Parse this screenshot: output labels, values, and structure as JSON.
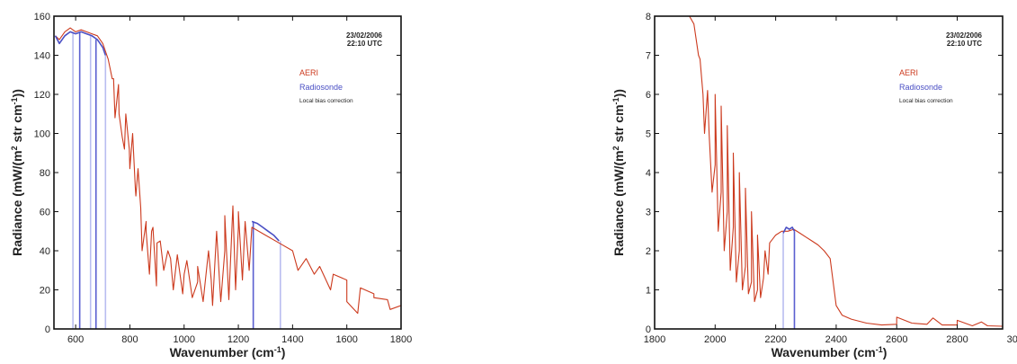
{
  "chart_data": [
    {
      "type": "line",
      "xlabel": "Wavenumber (cm",
      "xlabel_sup": "-1",
      "xlabel_end": ")",
      "ylabel": "Radiance (mW/(m",
      "ylabel_sup1": "2",
      "ylabel_mid": " str cm",
      "ylabel_sup2": "-1",
      "ylabel_end": "))",
      "xlim": [
        520,
        1800
      ],
      "ylim": [
        0,
        160
      ],
      "x_ticks": [
        600,
        800,
        1000,
        1200,
        1400,
        1600,
        1800
      ],
      "y_ticks": [
        0,
        20,
        40,
        60,
        80,
        100,
        120,
        140,
        160
      ],
      "annotation_date": "23/02/2006",
      "annotation_time": "22:10 UTC",
      "legend_position": "top-right",
      "series": [
        {
          "name": "AERI",
          "color": "#cc3a1e",
          "x": [
            525,
            540,
            560,
            580,
            600,
            620,
            640,
            660,
            680,
            700,
            720,
            740,
            760,
            780,
            800,
            820,
            840,
            860,
            880,
            900,
            950,
            1000,
            1050,
            1100,
            1150,
            1200,
            1250,
            1300,
            1350,
            1400,
            1450,
            1500,
            1550,
            1600,
            1650,
            1700,
            1750,
            1800
          ],
          "y": [
            150,
            148,
            152,
            154,
            152,
            153,
            152,
            151,
            150,
            146,
            138,
            128,
            110,
            92,
            82,
            72,
            62,
            55,
            50,
            44,
            36,
            28,
            24,
            25,
            40,
            52,
            52,
            48,
            44,
            40,
            36,
            32,
            28,
            25,
            21,
            18,
            15,
            12
          ],
          "spikes": [
            {
              "x": 735,
              "y": 128
            },
            {
              "x": 745,
              "y": 108
            },
            {
              "x": 758,
              "y": 125
            },
            {
              "x": 772,
              "y": 98
            },
            {
              "x": 785,
              "y": 110
            },
            {
              "x": 798,
              "y": 92
            },
            {
              "x": 810,
              "y": 100
            },
            {
              "x": 822,
              "y": 68
            },
            {
              "x": 830,
              "y": 82
            },
            {
              "x": 845,
              "y": 40
            },
            {
              "x": 860,
              "y": 50
            },
            {
              "x": 872,
              "y": 28
            },
            {
              "x": 885,
              "y": 52
            },
            {
              "x": 898,
              "y": 22
            },
            {
              "x": 912,
              "y": 45
            },
            {
              "x": 925,
              "y": 30
            },
            {
              "x": 940,
              "y": 40
            },
            {
              "x": 960,
              "y": 20
            },
            {
              "x": 975,
              "y": 38
            },
            {
              "x": 995,
              "y": 18
            },
            {
              "x": 1010,
              "y": 35
            },
            {
              "x": 1030,
              "y": 16
            },
            {
              "x": 1050,
              "y": 32
            },
            {
              "x": 1070,
              "y": 14
            },
            {
              "x": 1090,
              "y": 40
            },
            {
              "x": 1105,
              "y": 12
            },
            {
              "x": 1120,
              "y": 50
            },
            {
              "x": 1135,
              "y": 14
            },
            {
              "x": 1150,
              "y": 58
            },
            {
              "x": 1165,
              "y": 15
            },
            {
              "x": 1180,
              "y": 63
            },
            {
              "x": 1190,
              "y": 20
            },
            {
              "x": 1200,
              "y": 60
            },
            {
              "x": 1215,
              "y": 25
            },
            {
              "x": 1225,
              "y": 55
            },
            {
              "x": 1240,
              "y": 30
            },
            {
              "x": 1420,
              "y": 30
            },
            {
              "x": 1480,
              "y": 28
            },
            {
              "x": 1540,
              "y": 20
            },
            {
              "x": 1600,
              "y": 14
            },
            {
              "x": 1640,
              "y": 8
            },
            {
              "x": 1700,
              "y": 16
            },
            {
              "x": 1760,
              "y": 10
            }
          ]
        },
        {
          "name": "Radiosonde",
          "color": "#4a4fc4",
          "x": [
            525,
            540,
            560,
            580,
            600,
            620,
            640,
            660,
            680,
            700,
            710,
            1250,
            1270,
            1290,
            1310,
            1330,
            1350
          ],
          "y": [
            150,
            146,
            150,
            152,
            151,
            152,
            151,
            150,
            148,
            144,
            140,
            55,
            54,
            52,
            50,
            48,
            45
          ]
        }
      ],
      "bias_lines_x": [
        590,
        615,
        655,
        675,
        710,
        1255,
        1355
      ],
      "bias_label": "Local bias correction"
    },
    {
      "type": "line",
      "xlabel": "Wavenumber (cm",
      "xlabel_sup": "-1",
      "xlabel_end": ")",
      "ylabel": "Radiance (mW/(m",
      "ylabel_sup1": "2",
      "ylabel_mid": " str cm",
      "ylabel_sup2": "-1",
      "ylabel_end": "))",
      "xlim": [
        1800,
        2950
      ],
      "ylim": [
        0,
        8
      ],
      "x_ticks": [
        1800,
        2000,
        2200,
        2400,
        2600,
        2800,
        3000
      ],
      "y_ticks": [
        0,
        1,
        2,
        3,
        4,
        5,
        6,
        7,
        8
      ],
      "annotation_date": "23/02/2006",
      "annotation_time": "22:10 UTC",
      "legend_position": "top-right",
      "series": [
        {
          "name": "AERI",
          "color": "#cc3a1e",
          "x": [
            1915,
            1930,
            1945,
            1960,
            1980,
            2000,
            2020,
            2040,
            2060,
            2080,
            2100,
            2120,
            2140,
            2160,
            2180,
            2200,
            2220,
            2240,
            2260,
            2280,
            2300,
            2320,
            2340,
            2360,
            2380,
            2400,
            2420,
            2450,
            2500,
            2550,
            2600,
            2650,
            2700,
            2750,
            2800,
            2850,
            2900,
            2950
          ],
          "y": [
            8,
            7.8,
            7.0,
            6.0,
            5.0,
            4.2,
            3.5,
            3.0,
            2.6,
            2.0,
            1.6,
            1.2,
            1.0,
            1.3,
            2.2,
            2.4,
            2.5,
            2.5,
            2.55,
            2.45,
            2.35,
            2.25,
            2.15,
            2.0,
            1.8,
            0.6,
            0.35,
            0.25,
            0.15,
            0.1,
            0.12,
            0.15,
            0.12,
            0.1,
            0.1,
            0.08,
            0.08,
            0.07
          ],
          "spikes": [
            {
              "x": 1950,
              "y": 6.9
            },
            {
              "x": 1965,
              "y": 5.0
            },
            {
              "x": 1975,
              "y": 6.1
            },
            {
              "x": 1990,
              "y": 3.5
            },
            {
              "x": 2000,
              "y": 6.0
            },
            {
              "x": 2010,
              "y": 2.5
            },
            {
              "x": 2020,
              "y": 5.7
            },
            {
              "x": 2030,
              "y": 2.0
            },
            {
              "x": 2040,
              "y": 5.2
            },
            {
              "x": 2050,
              "y": 1.5
            },
            {
              "x": 2060,
              "y": 4.5
            },
            {
              "x": 2070,
              "y": 1.2
            },
            {
              "x": 2080,
              "y": 4.0
            },
            {
              "x": 2090,
              "y": 1.0
            },
            {
              "x": 2100,
              "y": 3.6
            },
            {
              "x": 2110,
              "y": 0.9
            },
            {
              "x": 2120,
              "y": 3.0
            },
            {
              "x": 2130,
              "y": 0.7
            },
            {
              "x": 2140,
              "y": 2.4
            },
            {
              "x": 2150,
              "y": 0.8
            },
            {
              "x": 2165,
              "y": 2.0
            },
            {
              "x": 2175,
              "y": 1.4
            },
            {
              "x": 2600,
              "y": 0.3
            },
            {
              "x": 2720,
              "y": 0.28
            },
            {
              "x": 2800,
              "y": 0.22
            },
            {
              "x": 2880,
              "y": 0.18
            }
          ]
        },
        {
          "name": "Radiosonde",
          "color": "#4a4fc4",
          "x": [
            2225,
            2235,
            2245,
            2255,
            2262
          ],
          "y": [
            2.45,
            2.6,
            2.55,
            2.6,
            2.5
          ]
        }
      ],
      "bias_lines_x": [
        2225,
        2262
      ],
      "bias_label": "Local bias correction"
    }
  ]
}
